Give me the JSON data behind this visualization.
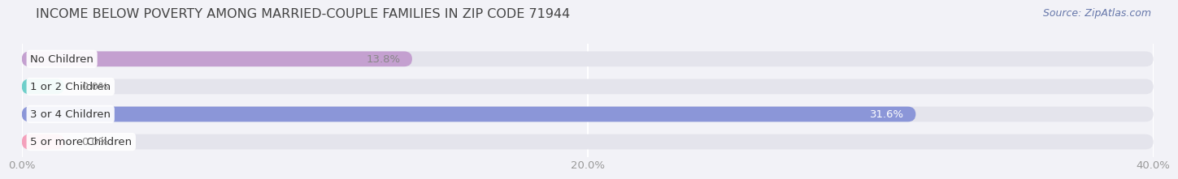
{
  "title": "INCOME BELOW POVERTY AMONG MARRIED-COUPLE FAMILIES IN ZIP CODE 71944",
  "source": "Source: ZipAtlas.com",
  "categories": [
    "No Children",
    "1 or 2 Children",
    "3 or 4 Children",
    "5 or more Children"
  ],
  "values": [
    13.8,
    0.0,
    31.6,
    0.0
  ],
  "bar_colors": [
    "#c4a0d0",
    "#6ecfca",
    "#8b96d8",
    "#f4a0bb"
  ],
  "value_label_colors": [
    "#888888",
    "#888888",
    "#ffffff",
    "#888888"
  ],
  "xlim": [
    0,
    40
  ],
  "xticks": [
    0.0,
    20.0,
    40.0
  ],
  "xtick_labels": [
    "0.0%",
    "20.0%",
    "40.0%"
  ],
  "background_color": "#f2f2f7",
  "bar_bg_color": "#e4e4ec",
  "title_fontsize": 11.5,
  "tick_fontsize": 9.5,
  "label_fontsize": 9.5,
  "value_fontsize": 9.5,
  "stub_value": 1.5
}
